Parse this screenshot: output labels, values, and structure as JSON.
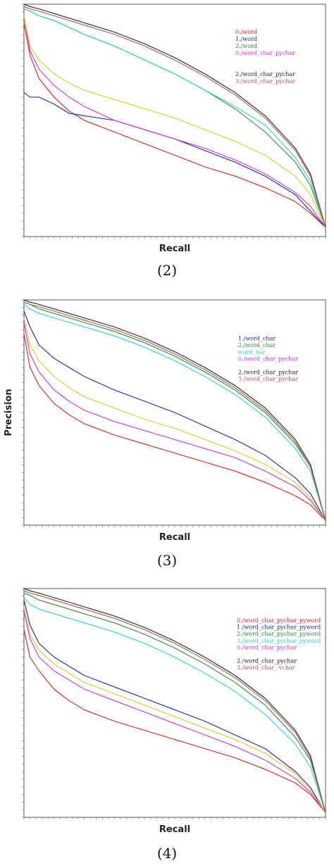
{
  "chart_data": [
    {
      "type": "line",
      "panel_label": "(2)",
      "xlabel": "Recall",
      "ylabel": "",
      "xlim": [
        0,
        1
      ],
      "ylim": [
        0,
        1
      ],
      "legend_position": "top-right",
      "x": [
        0,
        0.02,
        0.05,
        0.1,
        0.15,
        0.2,
        0.3,
        0.4,
        0.5,
        0.6,
        0.7,
        0.8,
        0.9,
        0.95,
        1.0
      ],
      "series": [
        {
          "name": "0./word",
          "color": "#cc2222",
          "values": [
            0.92,
            0.78,
            0.68,
            0.6,
            0.54,
            0.5,
            0.45,
            0.4,
            0.35,
            0.3,
            0.26,
            0.21,
            0.15,
            0.1,
            0.04
          ]
        },
        {
          "name": "1./word",
          "color": "#22229e",
          "values": [
            0.62,
            0.6,
            0.6,
            0.57,
            0.53,
            0.52,
            0.5,
            0.46,
            0.42,
            0.37,
            0.32,
            0.26,
            0.18,
            0.11,
            0.04
          ]
        },
        {
          "name": "2./word",
          "color": "#2e8b2e",
          "values": [
            0.98,
            0.97,
            0.95,
            0.93,
            0.9,
            0.87,
            0.82,
            0.76,
            0.7,
            0.63,
            0.55,
            0.45,
            0.32,
            0.22,
            0.04
          ]
        },
        {
          "name": "0./word_char_pychar",
          "color": "#cc33cc",
          "values": [
            0.95,
            0.8,
            0.72,
            0.65,
            0.6,
            0.56,
            0.5,
            0.46,
            0.42,
            0.38,
            0.33,
            0.27,
            0.19,
            0.13,
            0.04
          ]
        },
        {
          "name": "",
          "color": "#cccc33",
          "values": [
            0.95,
            0.82,
            0.76,
            0.7,
            0.66,
            0.63,
            0.59,
            0.55,
            0.51,
            0.46,
            0.41,
            0.35,
            0.26,
            0.18,
            0.04
          ]
        },
        {
          "name": "",
          "color": "#33cccc",
          "values": [
            0.98,
            0.97,
            0.95,
            0.93,
            0.9,
            0.87,
            0.82,
            0.76,
            0.7,
            0.63,
            0.56,
            0.48,
            0.34,
            0.24,
            0.04
          ]
        },
        {
          "name": "2./word_char_pychar",
          "color": "#222222",
          "values": [
            1.0,
            0.99,
            0.98,
            0.96,
            0.94,
            0.92,
            0.88,
            0.83,
            0.77,
            0.7,
            0.62,
            0.52,
            0.38,
            0.27,
            0.04
          ]
        },
        {
          "name": "3./word_char_pychar",
          "color": "#aa5555",
          "values": [
            0.99,
            0.98,
            0.97,
            0.95,
            0.93,
            0.91,
            0.87,
            0.82,
            0.76,
            0.69,
            0.61,
            0.51,
            0.37,
            0.26,
            0.04
          ]
        }
      ]
    },
    {
      "type": "line",
      "panel_label": "(3)",
      "xlabel": "Recall",
      "ylabel": "Precision",
      "xlim": [
        0,
        1
      ],
      "ylim": [
        0,
        1
      ],
      "legend_position": "top-right",
      "x": [
        0,
        0.02,
        0.05,
        0.1,
        0.15,
        0.2,
        0.3,
        0.4,
        0.5,
        0.6,
        0.7,
        0.8,
        0.9,
        0.95,
        1.0
      ],
      "series": [
        {
          "name": "",
          "color": "#cc2222",
          "values": [
            0.85,
            0.7,
            0.62,
            0.54,
            0.49,
            0.45,
            0.4,
            0.36,
            0.32,
            0.28,
            0.24,
            0.19,
            0.13,
            0.09,
            0.02
          ]
        },
        {
          "name": "1./word_char",
          "color": "#22229e",
          "values": [
            0.95,
            0.88,
            0.8,
            0.74,
            0.7,
            0.66,
            0.6,
            0.55,
            0.5,
            0.44,
            0.38,
            0.31,
            0.21,
            0.14,
            0.02
          ]
        },
        {
          "name": "2./word_char",
          "color": "#2e8b2e",
          "values": [
            0.99,
            0.98,
            0.96,
            0.94,
            0.92,
            0.9,
            0.86,
            0.81,
            0.75,
            0.68,
            0.6,
            0.5,
            0.36,
            0.26,
            0.02
          ]
        },
        {
          "name": "word_bar",
          "color": "#33cccc",
          "values": [
            0.98,
            0.96,
            0.94,
            0.92,
            0.9,
            0.88,
            0.84,
            0.79,
            0.73,
            0.66,
            0.58,
            0.48,
            0.34,
            0.24,
            0.02
          ]
        },
        {
          "name": "0./word_char_pychar",
          "color": "#cc33cc",
          "values": [
            0.9,
            0.76,
            0.68,
            0.6,
            0.55,
            0.51,
            0.46,
            0.42,
            0.38,
            0.34,
            0.3,
            0.24,
            0.17,
            0.11,
            0.02
          ]
        },
        {
          "name": "",
          "color": "#cccc33",
          "values": [
            0.92,
            0.8,
            0.73,
            0.66,
            0.61,
            0.57,
            0.52,
            0.47,
            0.43,
            0.38,
            0.33,
            0.27,
            0.19,
            0.12,
            0.02
          ]
        },
        {
          "name": "2./word_char_pychar",
          "color": "#222222",
          "values": [
            1.0,
            0.99,
            0.98,
            0.96,
            0.94,
            0.92,
            0.88,
            0.83,
            0.77,
            0.7,
            0.62,
            0.52,
            0.38,
            0.27,
            0.02
          ]
        },
        {
          "name": "3./word_char_pychar",
          "color": "#aa5555",
          "values": [
            0.99,
            0.98,
            0.97,
            0.95,
            0.93,
            0.91,
            0.87,
            0.82,
            0.76,
            0.69,
            0.61,
            0.51,
            0.37,
            0.26,
            0.02
          ]
        }
      ]
    },
    {
      "type": "line",
      "panel_label": "(4)",
      "xlabel": "Recall",
      "ylabel": "",
      "xlim": [
        0,
        1
      ],
      "ylim": [
        0,
        1
      ],
      "legend_position": "top-right",
      "x": [
        0,
        0.02,
        0.05,
        0.1,
        0.15,
        0.2,
        0.3,
        0.4,
        0.5,
        0.6,
        0.7,
        0.8,
        0.9,
        0.95,
        1.0
      ],
      "series": [
        {
          "name": "0./word_char_pychar_pyword",
          "color": "#cc2222",
          "values": [
            0.82,
            0.7,
            0.64,
            0.56,
            0.51,
            0.47,
            0.42,
            0.38,
            0.34,
            0.3,
            0.26,
            0.21,
            0.15,
            0.1,
            0.02
          ]
        },
        {
          "name": "1./word_char_pychar_pyword",
          "color": "#22229e",
          "values": [
            0.95,
            0.84,
            0.76,
            0.7,
            0.66,
            0.62,
            0.57,
            0.52,
            0.47,
            0.42,
            0.36,
            0.3,
            0.2,
            0.13,
            0.02
          ]
        },
        {
          "name": "2./word_char_pychar_pyword",
          "color": "#2e8b2e",
          "values": [
            0.98,
            0.97,
            0.95,
            0.93,
            0.91,
            0.89,
            0.85,
            0.8,
            0.74,
            0.67,
            0.59,
            0.49,
            0.35,
            0.25,
            0.02
          ]
        },
        {
          "name": "3./word_char_pychar_pyword",
          "color": "#33cccc",
          "values": [
            0.96,
            0.93,
            0.91,
            0.89,
            0.87,
            0.85,
            0.81,
            0.76,
            0.7,
            0.63,
            0.55,
            0.45,
            0.32,
            0.22,
            0.02
          ]
        },
        {
          "name": "0./word_char_pychar",
          "color": "#cc33cc",
          "values": [
            0.9,
            0.78,
            0.7,
            0.64,
            0.6,
            0.56,
            0.51,
            0.46,
            0.41,
            0.36,
            0.31,
            0.25,
            0.17,
            0.11,
            0.02
          ]
        },
        {
          "name": "",
          "color": "#cccc33",
          "values": [
            0.92,
            0.8,
            0.73,
            0.67,
            0.63,
            0.59,
            0.54,
            0.49,
            0.44,
            0.39,
            0.34,
            0.28,
            0.19,
            0.12,
            0.02
          ]
        },
        {
          "name": "2./word_char_pychar",
          "color": "#222222",
          "values": [
            1.0,
            0.99,
            0.98,
            0.96,
            0.94,
            0.92,
            0.88,
            0.83,
            0.77,
            0.7,
            0.62,
            0.52,
            0.38,
            0.27,
            0.02
          ]
        },
        {
          "name": "3./word_char_-vchar",
          "color": "#aa5555",
          "values": [
            0.99,
            0.98,
            0.97,
            0.95,
            0.93,
            0.91,
            0.87,
            0.82,
            0.76,
            0.69,
            0.61,
            0.51,
            0.37,
            0.26,
            0.02
          ]
        }
      ]
    }
  ]
}
